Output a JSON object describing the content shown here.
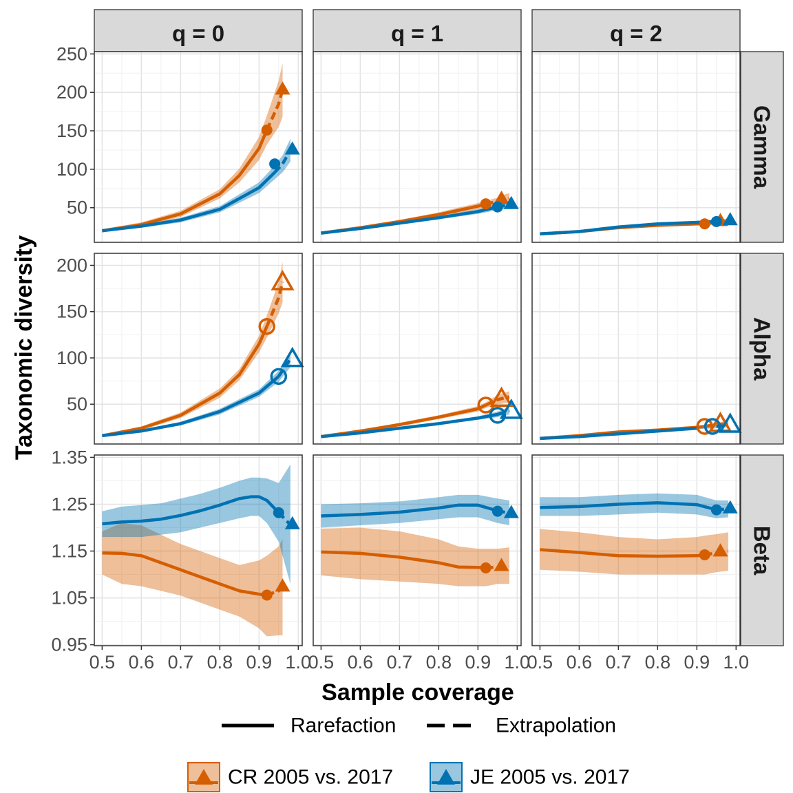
{
  "chart_data": {
    "type": "line",
    "xlabel": "Sample coverage",
    "ylabel": "Taxonomic diversity",
    "columns": [
      "q = 0",
      "q = 1",
      "q = 2"
    ],
    "rows": [
      "Gamma",
      "Alpha",
      "Beta"
    ],
    "xlim": [
      0.48,
      1.01
    ],
    "x_ticks": [
      0.5,
      0.6,
      0.7,
      0.8,
      0.9,
      1.0
    ],
    "x_tick_labels": [
      "0.5",
      "0.6",
      "0.7",
      "0.8",
      "0.9",
      "1.0"
    ],
    "row_axes": [
      {
        "ylim": [
          5,
          253
        ],
        "ticks": [
          50,
          100,
          150,
          200,
          250
        ],
        "tick_labels": [
          "50",
          "100",
          "150",
          "200",
          "250"
        ]
      },
      {
        "ylim": [
          7,
          213
        ],
        "ticks": [
          50,
          100,
          150,
          200
        ],
        "tick_labels": [
          "50",
          "100",
          "150",
          "200"
        ]
      },
      {
        "ylim": [
          0.948,
          1.355
        ],
        "ticks": [
          0.95,
          1.05,
          1.15,
          1.25,
          1.35
        ],
        "tick_labels": [
          "0.95",
          "1.05",
          "1.15",
          "1.25",
          "1.35"
        ]
      }
    ],
    "series": [
      {
        "name": "CR 2005 vs. 2017",
        "color": "#D55E00"
      },
      {
        "name": "JE 2005 vs. 2017",
        "color": "#0072B2"
      }
    ],
    "line_types": {
      "solid": "Rarefaction",
      "dashed": "Extrapolation"
    },
    "panels": [
      {
        "row": 0,
        "col": 0,
        "curves": [
          {
            "series": 0,
            "x": [
              0.5,
              0.6,
              0.7,
              0.8,
              0.85,
              0.9,
              0.92,
              0.95,
              0.96
            ],
            "y": [
              20,
              28,
              42,
              68,
              92,
              127,
              151,
              185,
              203
            ],
            "lower": [
              18,
              25,
              38,
              62,
              83,
              112,
              132,
              155,
              168
            ],
            "upper": [
              22,
              31,
              46,
              74,
              101,
              142,
              170,
              215,
              238
            ],
            "ref_x": 0.92,
            "ref_y": 151,
            "end_x": 0.96,
            "end_y": 203
          },
          {
            "series": 1,
            "x": [
              0.5,
              0.6,
              0.7,
              0.8,
              0.9,
              0.94,
              0.96,
              0.98
            ],
            "y": [
              20,
              26,
              34,
              48,
              76,
              96,
              107,
              125
            ],
            "lower": [
              18,
              24,
              31,
              44,
              69,
              87,
              96,
              110
            ],
            "upper": [
              22,
              28,
              37,
              52,
              83,
              105,
              118,
              140
            ],
            "ref_x": 0.94,
            "ref_y": 107,
            "end_x": 0.985,
            "end_y": 125
          }
        ]
      },
      {
        "row": 0,
        "col": 1,
        "curves": [
          {
            "series": 0,
            "x": [
              0.5,
              0.6,
              0.7,
              0.8,
              0.9,
              0.92,
              0.95,
              0.96,
              0.98
            ],
            "y": [
              17,
              24,
              32,
              41,
              52,
              55,
              58,
              60,
              62
            ],
            "lower": [
              16,
              22,
              30,
              38,
              48,
              51,
              53,
              54,
              55
            ],
            "upper": [
              18,
              26,
              34,
              44,
              56,
              59,
              63,
              66,
              69
            ],
            "ref_x": 0.92,
            "ref_y": 55,
            "end_x": 0.96,
            "end_y": 61
          },
          {
            "series": 1,
            "x": [
              0.5,
              0.6,
              0.7,
              0.8,
              0.9,
              0.95,
              0.98
            ],
            "y": [
              17,
              23,
              30,
              37,
              45,
              51,
              54
            ],
            "lower": [
              16,
              21,
              28,
              35,
              42,
              47,
              49
            ],
            "upper": [
              18,
              25,
              32,
              39,
              48,
              55,
              59
            ],
            "ref_x": 0.95,
            "ref_y": 51,
            "end_x": 0.985,
            "end_y": 54
          }
        ]
      },
      {
        "row": 0,
        "col": 2,
        "curves": [
          {
            "series": 0,
            "x": [
              0.5,
              0.6,
              0.7,
              0.8,
              0.9,
              0.92,
              0.95,
              0.98
            ],
            "y": [
              16,
              19,
              24,
              27,
              29,
              29,
              31,
              31
            ],
            "lower": [
              15,
              18,
              23,
              26,
              27,
              27,
              28,
              28
            ],
            "upper": [
              17,
              20,
              25,
              28,
              31,
              31,
              34,
              34
            ],
            "ref_x": 0.92,
            "ref_y": 29,
            "end_x": 0.96,
            "end_y": 32
          },
          {
            "series": 1,
            "x": [
              0.5,
              0.6,
              0.7,
              0.8,
              0.9,
              0.95,
              0.98
            ],
            "y": [
              16,
              19,
              25,
              29,
              31,
              32,
              33
            ],
            "lower": [
              15,
              18,
              24,
              28,
              30,
              30,
              30
            ],
            "upper": [
              17,
              20,
              26,
              30,
              32,
              34,
              36
            ],
            "ref_x": 0.95,
            "ref_y": 32,
            "end_x": 0.985,
            "end_y": 33
          }
        ]
      },
      {
        "row": 1,
        "col": 0,
        "curves": [
          {
            "series": 0,
            "x": [
              0.5,
              0.6,
              0.7,
              0.8,
              0.85,
              0.9,
              0.92,
              0.95,
              0.96
            ],
            "y": [
              16,
              24,
              38,
              62,
              82,
              115,
              134,
              165,
              182
            ],
            "lower": [
              15,
              22,
              35,
              57,
              76,
              106,
              122,
              148,
              160
            ],
            "upper": [
              17,
              26,
              41,
              67,
              88,
              124,
              146,
              182,
              204
            ],
            "ref_x": 0.92,
            "ref_y": 134,
            "end_x": 0.96,
            "end_y": 182
          },
          {
            "series": 1,
            "x": [
              0.5,
              0.6,
              0.7,
              0.8,
              0.9,
              0.95,
              0.98
            ],
            "y": [
              16,
              21,
              29,
              42,
              62,
              80,
              99
            ],
            "lower": [
              15,
              20,
              27,
              39,
              58,
              74,
              90
            ],
            "upper": [
              17,
              22,
              31,
              45,
              66,
              86,
              108
            ],
            "ref_x": 0.95,
            "ref_y": 80,
            "end_x": 0.985,
            "end_y": 99
          }
        ]
      },
      {
        "row": 1,
        "col": 1,
        "curves": [
          {
            "series": 0,
            "x": [
              0.5,
              0.6,
              0.7,
              0.8,
              0.9,
              0.92,
              0.95,
              0.98
            ],
            "y": [
              15,
              21,
              28,
              36,
              45,
              49,
              55,
              58
            ],
            "lower": [
              14,
              20,
              26,
              34,
              42,
              46,
              50,
              52
            ],
            "upper": [
              16,
              22,
              30,
              38,
              48,
              52,
              60,
              64
            ],
            "ref_x": 0.92,
            "ref_y": 49,
            "end_x": 0.96,
            "end_y": 56
          },
          {
            "series": 1,
            "x": [
              0.5,
              0.6,
              0.7,
              0.8,
              0.9,
              0.95,
              0.98
            ],
            "y": [
              15,
              19,
              24,
              29,
              35,
              39,
              43
            ],
            "lower": [
              14,
              18,
              23,
              28,
              33,
              36,
              39
            ],
            "upper": [
              16,
              20,
              25,
              30,
              37,
              42,
              47
            ],
            "ref_x": 0.95,
            "ref_y": 38,
            "end_x": 0.985,
            "end_y": 43
          }
        ]
      },
      {
        "row": 1,
        "col": 2,
        "curves": [
          {
            "series": 0,
            "x": [
              0.5,
              0.6,
              0.7,
              0.8,
              0.9,
              0.92,
              0.95,
              0.98
            ],
            "y": [
              13,
              16,
              20,
              22,
              25,
              26,
              28,
              29
            ],
            "lower": [
              12,
              15,
              19,
              21,
              24,
              24,
              26,
              26
            ],
            "upper": [
              14,
              17,
              21,
              23,
              26,
              28,
              30,
              32
            ],
            "ref_x": 0.92,
            "ref_y": 26,
            "end_x": 0.96,
            "end_y": 29
          },
          {
            "series": 1,
            "x": [
              0.5,
              0.6,
              0.7,
              0.8,
              0.9,
              0.95,
              0.98
            ],
            "y": [
              13,
              15,
              18,
              21,
              24,
              26,
              27
            ],
            "lower": [
              12,
              14,
              17,
              20,
              23,
              24,
              25
            ],
            "upper": [
              14,
              16,
              19,
              22,
              25,
              28,
              30
            ],
            "ref_x": 0.94,
            "ref_y": 26,
            "end_x": 0.985,
            "end_y": 28
          }
        ]
      },
      {
        "row": 2,
        "col": 0,
        "curves": [
          {
            "series": 0,
            "x": [
              0.5,
              0.55,
              0.6,
              0.65,
              0.7,
              0.75,
              0.8,
              0.85,
              0.9,
              0.92,
              0.95,
              0.96
            ],
            "y": [
              1.146,
              1.145,
              1.14,
              1.125,
              1.11,
              1.095,
              1.08,
              1.065,
              1.058,
              1.056,
              1.065,
              1.073
            ],
            "lower": [
              1.1,
              1.08,
              1.075,
              1.065,
              1.055,
              1.04,
              1.025,
              1.01,
              0.985,
              0.968,
              0.97,
              0.97
            ],
            "upper": [
              1.192,
              1.21,
              1.205,
              1.185,
              1.165,
              1.15,
              1.135,
              1.12,
              1.13,
              1.14,
              1.16,
              1.175
            ],
            "ref_x": 0.92,
            "ref_y": 1.056,
            "end_x": 0.96,
            "end_y": 1.073
          },
          {
            "series": 1,
            "x": [
              0.5,
              0.55,
              0.6,
              0.65,
              0.7,
              0.75,
              0.8,
              0.85,
              0.88,
              0.9,
              0.92,
              0.95,
              0.98
            ],
            "y": [
              1.208,
              1.212,
              1.214,
              1.218,
              1.226,
              1.236,
              1.248,
              1.262,
              1.266,
              1.266,
              1.258,
              1.232,
              1.206
            ],
            "lower": [
              1.18,
              1.18,
              1.18,
              1.185,
              1.19,
              1.2,
              1.21,
              1.22,
              1.225,
              1.225,
              1.21,
              1.17,
              1.08
            ],
            "upper": [
              1.235,
              1.245,
              1.248,
              1.252,
              1.262,
              1.272,
              1.285,
              1.3,
              1.307,
              1.307,
              1.305,
              1.295,
              1.335
            ],
            "ref_x": 0.95,
            "ref_y": 1.232,
            "end_x": 0.985,
            "end_y": 1.206
          }
        ]
      },
      {
        "row": 2,
        "col": 1,
        "curves": [
          {
            "series": 0,
            "x": [
              0.5,
              0.6,
              0.7,
              0.8,
              0.85,
              0.9,
              0.92,
              0.95,
              0.98
            ],
            "y": [
              1.148,
              1.145,
              1.137,
              1.125,
              1.116,
              1.115,
              1.114,
              1.116,
              1.118
            ],
            "lower": [
              1.098,
              1.09,
              1.085,
              1.08,
              1.075,
              1.075,
              1.075,
              1.08,
              1.08
            ],
            "upper": [
              1.198,
              1.2,
              1.192,
              1.175,
              1.16,
              1.155,
              1.155,
              1.155,
              1.158
            ],
            "ref_x": 0.92,
            "ref_y": 1.114,
            "end_x": 0.96,
            "end_y": 1.117
          },
          {
            "series": 1,
            "x": [
              0.5,
              0.6,
              0.7,
              0.8,
              0.85,
              0.9,
              0.95,
              0.98
            ],
            "y": [
              1.225,
              1.228,
              1.233,
              1.242,
              1.248,
              1.248,
              1.236,
              1.231
            ],
            "lower": [
              1.2,
              1.205,
              1.21,
              1.218,
              1.222,
              1.222,
              1.21,
              1.205
            ],
            "upper": [
              1.25,
              1.252,
              1.256,
              1.265,
              1.27,
              1.27,
              1.262,
              1.258
            ],
            "ref_x": 0.95,
            "ref_y": 1.235,
            "end_x": 0.985,
            "end_y": 1.23
          }
        ]
      },
      {
        "row": 2,
        "col": 2,
        "curves": [
          {
            "series": 0,
            "x": [
              0.5,
              0.6,
              0.7,
              0.8,
              0.9,
              0.92,
              0.95,
              0.98
            ],
            "y": [
              1.153,
              1.147,
              1.14,
              1.139,
              1.14,
              1.142,
              1.146,
              1.15
            ],
            "lower": [
              1.11,
              1.106,
              1.1,
              1.1,
              1.1,
              1.1,
              1.105,
              1.108
            ],
            "upper": [
              1.197,
              1.19,
              1.18,
              1.175,
              1.18,
              1.183,
              1.186,
              1.19
            ],
            "ref_x": 0.92,
            "ref_y": 1.142,
            "end_x": 0.96,
            "end_y": 1.148
          },
          {
            "series": 1,
            "x": [
              0.5,
              0.6,
              0.7,
              0.8,
              0.9,
              0.95,
              0.98
            ],
            "y": [
              1.243,
              1.245,
              1.25,
              1.253,
              1.249,
              1.238,
              1.24
            ],
            "lower": [
              1.225,
              1.225,
              1.228,
              1.232,
              1.228,
              1.22,
              1.222
            ],
            "upper": [
              1.265,
              1.265,
              1.27,
              1.273,
              1.27,
              1.258,
              1.258
            ],
            "ref_x": 0.95,
            "ref_y": 1.238,
            "end_x": 0.985,
            "end_y": 1.24
          }
        ]
      }
    ]
  }
}
